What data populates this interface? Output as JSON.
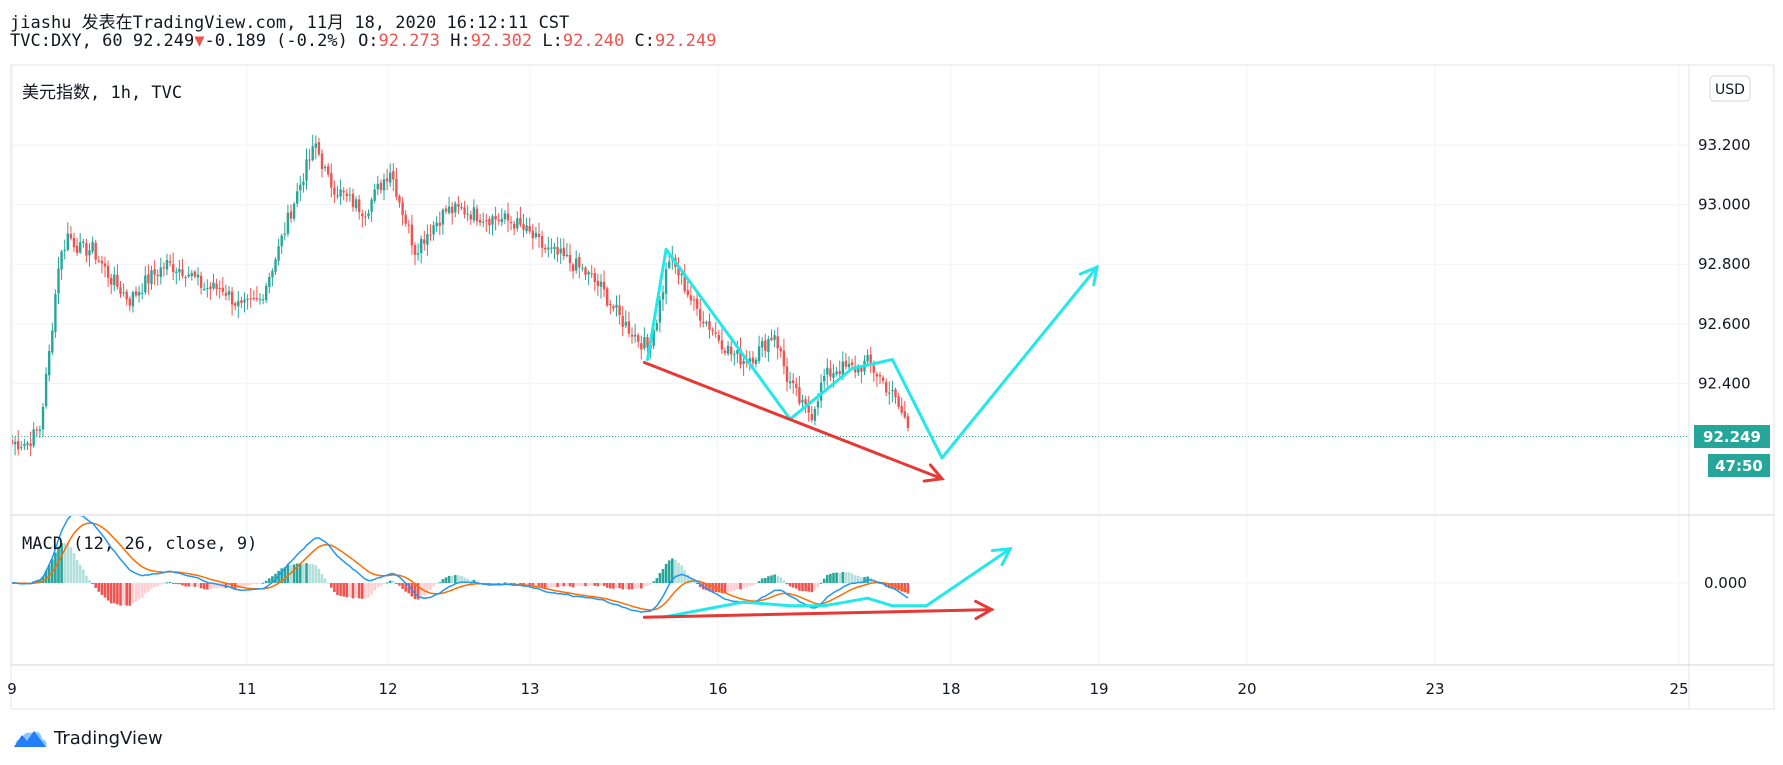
{
  "header": {
    "line1": "jiashu 发表在TradingView.com, 11月 18, 2020 16:12:11 CST",
    "symbol": "TVC:DXY, 60",
    "last": "92.249",
    "change": "-0.189 (-0.2%)",
    "o_label": "O:",
    "o": "92.273",
    "h_label": "H:",
    "h": "92.302",
    "l_label": "L:",
    "l": "92.240",
    "c_label": "C:",
    "c": "92.249"
  },
  "pane_title": "美元指数, 1h, TVC",
  "currency_button": "USD",
  "price_badge": "92.249",
  "countdown_badge": "47:50",
  "macd_title": "MACD (12, 26, close, 9)",
  "logo_text": "TradingView",
  "colors": {
    "up": "#26a69a",
    "down": "#ef5350",
    "cyan": "#22e8ea",
    "red": "#e53935",
    "macd": "#2196f3",
    "signal": "#ff6d00"
  },
  "chart_data": [
    {
      "type": "candlestick",
      "title": "美元指数, 1h, TVC",
      "ylim": [
        92.1,
        93.25
      ],
      "y_ticks": [
        "93.200",
        "93.000",
        "92.800",
        "92.600",
        "92.400"
      ],
      "x_ticks": [
        "9",
        "11",
        "12",
        "13",
        "16",
        "18",
        "19",
        "20",
        "23",
        "25"
      ],
      "last_price": 92.249,
      "path": [
        [
          0,
          92.2
        ],
        [
          5,
          92.2
        ],
        [
          9,
          92.25
        ],
        [
          12,
          92.5
        ],
        [
          15,
          92.8
        ],
        [
          18,
          92.9
        ],
        [
          22,
          92.85
        ],
        [
          26,
          92.85
        ],
        [
          32,
          92.75
        ],
        [
          38,
          92.68
        ],
        [
          44,
          92.75
        ],
        [
          50,
          92.8
        ],
        [
          56,
          92.78
        ],
        [
          62,
          92.72
        ],
        [
          68,
          92.72
        ],
        [
          74,
          92.65
        ],
        [
          80,
          92.68
        ],
        [
          86,
          92.85
        ],
        [
          90,
          92.98
        ],
        [
          94,
          93.1
        ],
        [
          98,
          93.2
        ],
        [
          102,
          93.08
        ],
        [
          108,
          93.02
        ],
        [
          114,
          92.98
        ],
        [
          118,
          93.05
        ],
        [
          122,
          93.12
        ],
        [
          126,
          92.98
        ],
        [
          130,
          92.85
        ],
        [
          135,
          92.92
        ],
        [
          140,
          92.98
        ],
        [
          146,
          92.98
        ],
        [
          152,
          92.96
        ],
        [
          158,
          92.95
        ],
        [
          162,
          92.94
        ],
        [
          167,
          92.9
        ],
        [
          172,
          92.85
        ],
        [
          178,
          92.82
        ],
        [
          184,
          92.78
        ],
        [
          190,
          92.72
        ],
        [
          196,
          92.62
        ],
        [
          202,
          92.55
        ],
        [
          205,
          92.52
        ],
        [
          208,
          92.62
        ],
        [
          212,
          92.82
        ],
        [
          216,
          92.75
        ],
        [
          220,
          92.66
        ],
        [
          226,
          92.58
        ],
        [
          232,
          92.5
        ],
        [
          236,
          92.48
        ],
        [
          240,
          92.5
        ],
        [
          246,
          92.57
        ],
        [
          250,
          92.42
        ],
        [
          255,
          92.32
        ],
        [
          258,
          92.3
        ],
        [
          262,
          92.42
        ],
        [
          266,
          92.45
        ],
        [
          272,
          92.45
        ],
        [
          276,
          92.47
        ],
        [
          280,
          92.42
        ],
        [
          284,
          92.36
        ],
        [
          288,
          92.28
        ],
        [
          289,
          92.25
        ]
      ],
      "annotations": [
        {
          "type": "line",
          "color": "cyan",
          "points": [
            [
              205,
              92.48
            ],
            [
              211,
              92.85
            ],
            [
              251,
              92.28
            ],
            [
              271,
              92.45
            ],
            [
              284,
              92.48
            ],
            [
              300,
              92.15
            ],
            [
              350,
              92.79
            ]
          ],
          "arrow": true
        },
        {
          "type": "line",
          "color": "red",
          "points": [
            [
              204,
              92.47
            ],
            [
              300,
              92.08
            ]
          ],
          "arrow": true
        }
      ]
    },
    {
      "type": "macd",
      "title": "MACD (12, 26, close, 9)",
      "fast": 12,
      "slow": 26,
      "source": "close",
      "signal": 9,
      "y_ticks": [
        "0.000"
      ],
      "annotations": [
        {
          "type": "line",
          "color": "cyan",
          "points": [
            [
              210,
              -0.09
            ],
            [
              236,
              -0.05
            ],
            [
              251,
              -0.06
            ],
            [
              262,
              -0.06
            ],
            [
              276,
              -0.04
            ],
            [
              284,
              -0.06
            ],
            [
              295,
              -0.06
            ],
            [
              322,
              0.09
            ]
          ],
          "arrow": true
        },
        {
          "type": "line",
          "color": "red",
          "points": [
            [
              204,
              -0.09
            ],
            [
              316,
              -0.07
            ]
          ],
          "arrow": true
        }
      ]
    }
  ]
}
